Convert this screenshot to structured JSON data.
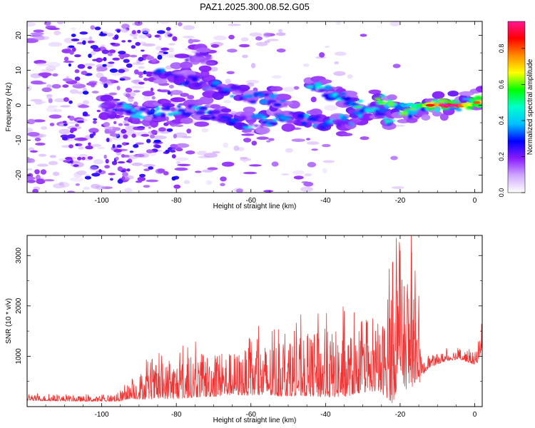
{
  "figure": {
    "title": "PAZ1.2025.300.08.52.G05"
  },
  "chart_data": [
    {
      "type": "heatmap",
      "name": "spectrogram",
      "xlabel": "Height of straight line (km)",
      "ylabel": "Frequency (Hz)",
      "xlim": [
        -120,
        2
      ],
      "ylim": [
        -25,
        24
      ],
      "xticks": [
        -100,
        -80,
        -60,
        -40,
        -20,
        0
      ],
      "yticks": [
        -20,
        -10,
        0,
        10,
        20
      ],
      "colorbar": {
        "label": "Normalized spectral amplitude",
        "range": [
          0.0,
          0.95
        ],
        "ticks": [
          "0.0",
          "0.2",
          "0.4",
          "0.6",
          "0.8"
        ],
        "colors": [
          "#ffffff",
          "#cfa8ff",
          "#8a1cff",
          "#0000ff",
          "#00bfff",
          "#00ffcc",
          "#00ff00",
          "#ffff00",
          "#ff8c00",
          "#ff0000",
          "#ff1493"
        ]
      },
      "ridges": [
        {
          "points": [
            [
              -100,
              0
            ],
            [
              -90,
              -2
            ],
            [
              -80,
              -1
            ],
            [
              -70,
              -3
            ],
            [
              -60,
              -5
            ],
            [
              -50,
              -3
            ],
            [
              -40,
              -5
            ],
            [
              -30,
              -3
            ]
          ],
          "amplitude": 0.35
        },
        {
          "points": [
            [
              -85,
              9
            ],
            [
              -75,
              7
            ],
            [
              -65,
              4
            ],
            [
              -58,
              2
            ],
            [
              -50,
              1
            ]
          ],
          "amplitude": 0.3
        },
        {
          "points": [
            [
              -80,
              9
            ],
            [
              -75,
              14
            ],
            [
              -70,
              12
            ]
          ],
          "amplitude": 0.2
        },
        {
          "points": [
            [
              -44,
              5
            ],
            [
              -40,
              4
            ],
            [
              -36,
              2
            ],
            [
              -32,
              0
            ],
            [
              -28,
              -1
            ],
            [
              -24,
              -3
            ],
            [
              -22,
              -6
            ]
          ],
          "amplitude": 0.45
        },
        {
          "points": [
            [
              -26,
              2
            ],
            [
              -22,
              1
            ],
            [
              -18,
              -2
            ],
            [
              -14,
              0
            ],
            [
              -10,
              0
            ],
            [
              -5,
              0
            ],
            [
              0,
              0.5
            ],
            [
              2,
              1
            ]
          ],
          "amplitude": 0.6
        }
      ],
      "peak": {
        "x": -7,
        "y": 0,
        "amplitude": 0.95
      }
    },
    {
      "type": "line",
      "name": "snr",
      "xlabel": "Height of straight line (km)",
      "ylabel": "SNR (10 * v/v)",
      "xlim": [
        -120,
        2
      ],
      "ylim": [
        0,
        3400
      ],
      "xticks": [
        -100,
        -80,
        -60,
        -40,
        -20,
        0
      ],
      "yticks": [
        1000,
        2000,
        3000
      ],
      "color": "#ee3333",
      "envelope": {
        "x": [
          -120,
          -110,
          -100,
          -95,
          -92,
          -90,
          -85,
          -80,
          -75,
          -70,
          -65,
          -60,
          -55,
          -50,
          -45,
          -40,
          -35,
          -30,
          -26,
          -24,
          -22,
          -21,
          -20,
          -19,
          -18,
          -17,
          -16,
          -15,
          -14,
          -12,
          -10,
          -8,
          -6,
          -4,
          -2,
          0,
          1,
          2
        ],
        "base": [
          150,
          140,
          130,
          160,
          250,
          300,
          350,
          380,
          430,
          460,
          480,
          500,
          520,
          540,
          560,
          570,
          580,
          600,
          620,
          700,
          900,
          1100,
          1200,
          1000,
          1100,
          1000,
          900,
          800,
          700,
          850,
          900,
          950,
          980,
          1000,
          950,
          900,
          1000,
          1300
        ],
        "amp": [
          90,
          90,
          80,
          150,
          250,
          450,
          550,
          650,
          700,
          750,
          700,
          800,
          900,
          950,
          1000,
          1100,
          1100,
          900,
          900,
          1400,
          2400,
          2200,
          1800,
          1600,
          2300,
          1800,
          1200,
          600,
          200,
          180,
          170,
          160,
          160,
          170,
          180,
          200,
          300,
          300
        ]
      },
      "peaks": [
        {
          "x": -21,
          "y": 3350
        },
        {
          "x": -20,
          "y": 3100
        },
        {
          "x": -17,
          "y": 3400
        },
        {
          "x": -16,
          "y": 2700
        },
        {
          "x": -15,
          "y": 2200
        },
        {
          "x": -22,
          "y": 2550
        },
        {
          "x": -35,
          "y": 1900
        },
        {
          "x": -42,
          "y": 1850
        }
      ]
    }
  ]
}
